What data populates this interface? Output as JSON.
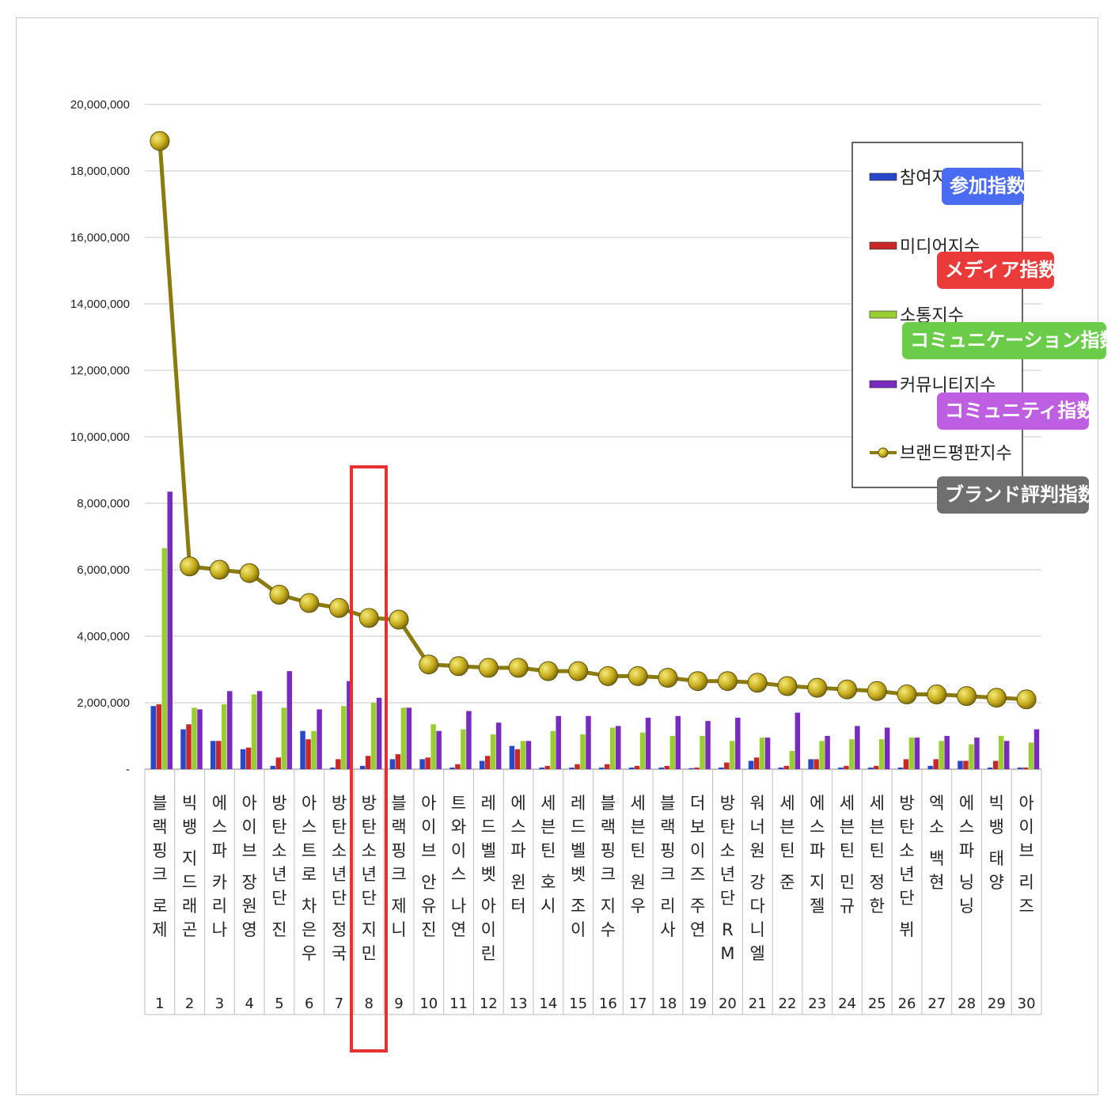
{
  "chart_data": {
    "type": "bar",
    "ylim": [
      0,
      20000000
    ],
    "yticks": [
      "-",
      "2,000,000",
      "4,000,000",
      "6,000,000",
      "8,000,000",
      "10,000,000",
      "12,000,000",
      "14,000,000",
      "16,000,000",
      "18,000,000",
      "20,000,000"
    ],
    "ranks": [
      "1",
      "2",
      "3",
      "4",
      "5",
      "6",
      "7",
      "8",
      "9",
      "10",
      "11",
      "12",
      "13",
      "14",
      "15",
      "16",
      "17",
      "18",
      "19",
      "20",
      "21",
      "22",
      "23",
      "24",
      "25",
      "26",
      "27",
      "28",
      "29",
      "30"
    ],
    "categories": [
      "블랙핑크 로제",
      "빅뱅 지드래곤",
      "에스파 카리나",
      "아이브 장원영",
      "방탄소년단 진",
      "아스트로 차은우",
      "방탄소년단 정국",
      "방탄소년단 지민",
      "블랙핑크 제니",
      "아이브 안유진",
      "트와이스 나연",
      "레드벨벳 아이린",
      "에스파 윈터",
      "세븐틴 호시",
      "레드벨벳 조이",
      "블랙핑크 지수",
      "세븐틴 원우",
      "블랙핑크 리사",
      "더보이즈 주연",
      "방탄소년단 RM",
      "워너원 강다니엘",
      "세븐틴 준",
      "에스파 지젤",
      "세븐틴 민규",
      "세븐틴 정한",
      "방탄소년단 뷔",
      "엑소 백현",
      "에스파 닝닝",
      "빅뱅 태양",
      "아이브 리즈"
    ],
    "highlight_rank": 8,
    "legend_position": "top-right",
    "grid": true,
    "series": [
      {
        "name": "참여지수",
        "kind": "bar",
        "color": "#2748c9",
        "values": [
          1900000,
          1200000,
          850000,
          600000,
          100000,
          1150000,
          50000,
          100000,
          300000,
          300000,
          50000,
          250000,
          700000,
          50000,
          50000,
          50000,
          50000,
          50000,
          30000,
          50000,
          250000,
          50000,
          300000,
          50000,
          50000,
          50000,
          100000,
          250000,
          50000,
          50000
        ]
      },
      {
        "name": "미디어지수",
        "kind": "bar",
        "color": "#c82828",
        "values": [
          1950000,
          1350000,
          850000,
          650000,
          350000,
          900000,
          300000,
          400000,
          450000,
          350000,
          150000,
          400000,
          600000,
          100000,
          150000,
          150000,
          100000,
          100000,
          50000,
          200000,
          350000,
          100000,
          300000,
          100000,
          100000,
          300000,
          300000,
          250000,
          250000,
          50000
        ]
      },
      {
        "name": "소통지수",
        "kind": "bar",
        "color": "#9acd32",
        "values": [
          6650000,
          1850000,
          1950000,
          2250000,
          1850000,
          1150000,
          1900000,
          2000000,
          1850000,
          1350000,
          1200000,
          1050000,
          850000,
          1150000,
          1050000,
          1250000,
          1100000,
          1000000,
          1000000,
          850000,
          950000,
          550000,
          850000,
          900000,
          900000,
          950000,
          850000,
          750000,
          1000000,
          800000
        ]
      },
      {
        "name": "커뮤니티지수",
        "kind": "bar",
        "color": "#7a2bbf",
        "values": [
          8350000,
          1800000,
          2350000,
          2350000,
          2950000,
          1800000,
          2650000,
          2150000,
          1850000,
          1150000,
          1750000,
          1400000,
          850000,
          1600000,
          1600000,
          1300000,
          1550000,
          1600000,
          1450000,
          1550000,
          950000,
          1700000,
          1000000,
          1300000,
          1250000,
          950000,
          1000000,
          950000,
          850000,
          1200000
        ]
      },
      {
        "name": "브랜드평판지수",
        "kind": "line",
        "color": "#8a7a10",
        "values": [
          18900000,
          6100000,
          6000000,
          5900000,
          5250000,
          5000000,
          4850000,
          4550000,
          4500000,
          3150000,
          3100000,
          3050000,
          3050000,
          2950000,
          2950000,
          2800000,
          2800000,
          2750000,
          2650000,
          2650000,
          2600000,
          2500000,
          2450000,
          2400000,
          2350000,
          2250000,
          2250000,
          2200000,
          2150000,
          2100000
        ]
      }
    ]
  },
  "badges": [
    {
      "text": "参加指数",
      "color": "#4a6cf2"
    },
    {
      "text": "メディア指数",
      "color": "#ea3a3a"
    },
    {
      "text": "コミュニケーション指数",
      "color": "#6bcc4a"
    },
    {
      "text": "コミュニティ指数",
      "color": "#bd5fe0"
    },
    {
      "text": "ブランド評判指数",
      "color": "#6f6f6f"
    }
  ]
}
